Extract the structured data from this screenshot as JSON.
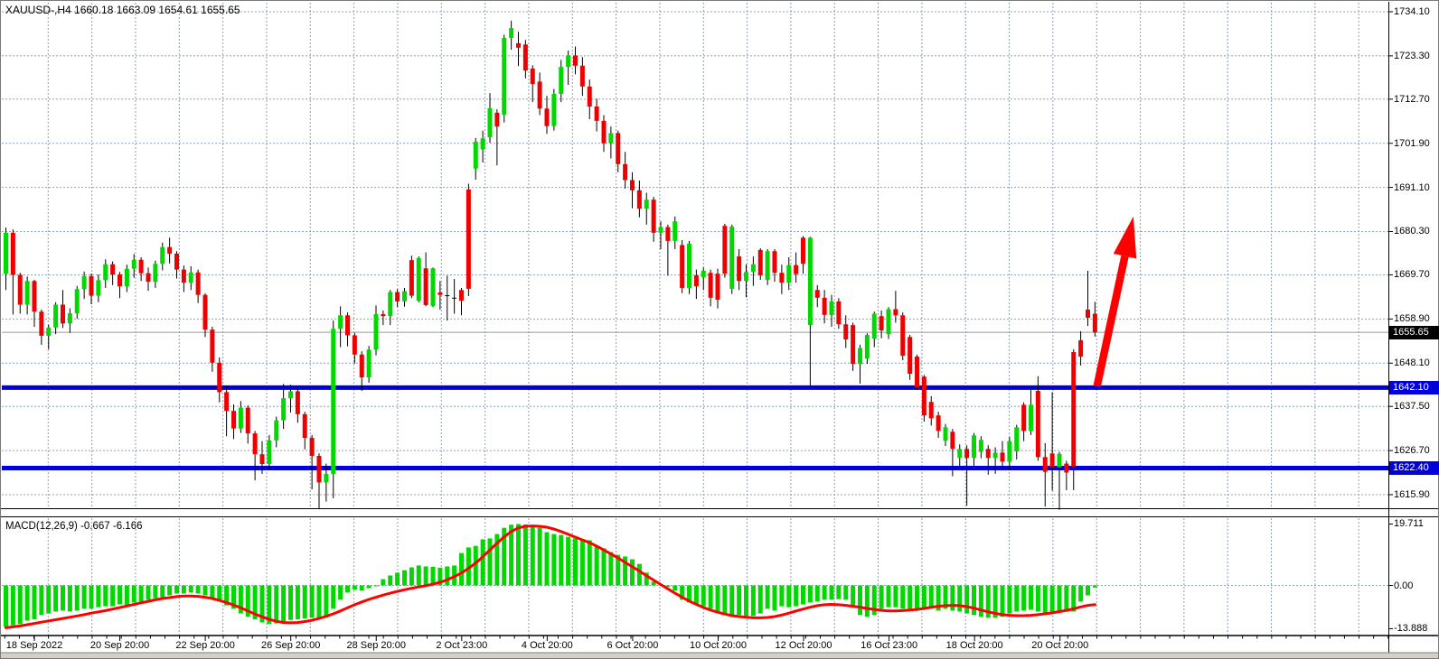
{
  "window": {
    "title": "XAUUSD-,H4  1660.18 1663.09 1654.61 1655.65"
  },
  "colors": {
    "bull": "#00d800",
    "bear": "#ee0000",
    "wick": "#000000",
    "grid": "#8e9fb5",
    "level_line": "#0000dd",
    "signal_line": "#ff0000",
    "arrow": "#ff0000",
    "current_line": "#999999",
    "tag_current_bg": "#000000",
    "tag_level_bg": "#0000dd",
    "axis_text": "#000000",
    "frame": "#7a7a7a",
    "bottom_strip": "#d4d0c8"
  },
  "price_axis": {
    "ticks": [
      "1734.10",
      "1723.30",
      "1712.70",
      "1701.90",
      "1691.10",
      "1680.30",
      "1669.70",
      "1658.90",
      "1648.10",
      "1637.50",
      "1626.70",
      "1615.90"
    ],
    "tags": [
      {
        "text": "1655.65",
        "bg": "#000000"
      },
      {
        "text": "1642.10",
        "bg": "#0000dd"
      },
      {
        "text": "1622.40",
        "bg": "#0000dd"
      }
    ]
  },
  "time_axis": {
    "labels": [
      "18 Sep 2022",
      "20 Sep 20:00",
      "22 Sep 20:00",
      "26 Sep 20:00",
      "28 Sep 20:00",
      "2 Oct 23:00",
      "4 Oct 20:00",
      "6 Oct 20:00",
      "10 Oct 20:00",
      "12 Oct 20:00",
      "16 Oct 23:00",
      "18 Oct 20:00",
      "20 Oct 20:00"
    ]
  },
  "macd_panel": {
    "label": "MACD(12,26,9) -0.667 -6.166",
    "axis": [
      "19.711",
      "0.00",
      "-13.888"
    ]
  },
  "chart_data": {
    "type": "candlestick",
    "symbol": "XAUUSD-",
    "timeframe": "H4",
    "title": "XAUUSD-,H4  1660.18 1663.09 1654.61 1655.65",
    "ylim": [
      1615.9,
      1734.1
    ],
    "y_ticks": [
      1734.1,
      1723.3,
      1712.7,
      1701.9,
      1691.1,
      1680.3,
      1669.7,
      1658.9,
      1648.1,
      1637.5,
      1626.7,
      1615.9
    ],
    "x_labels": [
      "18 Sep 2022",
      "20 Sep 20:00",
      "22 Sep 20:00",
      "26 Sep 20:00",
      "28 Sep 20:00",
      "2 Oct 23:00",
      "4 Oct 20:00",
      "6 Oct 20:00",
      "10 Oct 20:00",
      "12 Oct 20:00",
      "16 Oct 23:00",
      "18 Oct 20:00",
      "20 Oct 20:00"
    ],
    "current_price": 1655.65,
    "last_candle": {
      "open": 1660.18,
      "high": 1663.09,
      "low": 1654.61,
      "close": 1655.65
    },
    "horizontal_lines": [
      {
        "price": 1642.1,
        "color": "#0000dd"
      },
      {
        "price": 1622.4,
        "color": "#0000dd"
      }
    ],
    "annotation_arrow": {
      "from": {
        "bar": 153.3,
        "price": 1642.5
      },
      "to": {
        "bar": 158.4,
        "price": 1684.0
      },
      "color": "#ff0000"
    },
    "candles_ohlc": [
      [
        1670.0,
        1681.3,
        1666.0,
        1680.0
      ],
      [
        1680.0,
        1680.8,
        1660.0,
        1669.7
      ],
      [
        1669.7,
        1670.2,
        1660.2,
        1662.4
      ],
      [
        1662.4,
        1669.3,
        1660.0,
        1668.2
      ],
      [
        1668.2,
        1668.5,
        1657.0,
        1660.7
      ],
      [
        1660.7,
        1661.2,
        1652.6,
        1654.8
      ],
      [
        1654.8,
        1657.5,
        1651.5,
        1656.8
      ],
      [
        1656.8,
        1663.0,
        1655.2,
        1662.4
      ],
      [
        1662.4,
        1666.0,
        1656.7,
        1657.8
      ],
      [
        1657.8,
        1661.5,
        1655.5,
        1660.3
      ],
      [
        1660.3,
        1667.0,
        1659.0,
        1666.2
      ],
      [
        1666.2,
        1670.5,
        1663.8,
        1669.4
      ],
      [
        1669.4,
        1670.0,
        1662.5,
        1664.6
      ],
      [
        1664.6,
        1669.8,
        1663.0,
        1668.4
      ],
      [
        1668.4,
        1673.5,
        1666.5,
        1672.3
      ],
      [
        1672.3,
        1673.0,
        1667.2,
        1669.8
      ],
      [
        1669.8,
        1670.4,
        1664.0,
        1666.9
      ],
      [
        1666.9,
        1672.2,
        1665.5,
        1671.2
      ],
      [
        1671.2,
        1674.8,
        1669.0,
        1673.4
      ],
      [
        1673.4,
        1674.0,
        1668.2,
        1670.1
      ],
      [
        1670.1,
        1671.5,
        1665.8,
        1668.0
      ],
      [
        1668.0,
        1673.2,
        1666.5,
        1672.4
      ],
      [
        1672.4,
        1677.6,
        1670.8,
        1676.5
      ],
      [
        1676.5,
        1678.8,
        1672.5,
        1674.9
      ],
      [
        1674.9,
        1675.5,
        1668.8,
        1671.0
      ],
      [
        1671.0,
        1672.0,
        1665.5,
        1667.8
      ],
      [
        1667.8,
        1671.8,
        1666.0,
        1670.3
      ],
      [
        1670.3,
        1671.0,
        1662.8,
        1664.8
      ],
      [
        1664.8,
        1665.2,
        1654.5,
        1656.3
      ],
      [
        1656.3,
        1657.0,
        1646.0,
        1648.2
      ],
      [
        1648.2,
        1649.5,
        1638.5,
        1641.0
      ],
      [
        1641.0,
        1642.5,
        1630.2,
        1636.4
      ],
      [
        1636.4,
        1638.0,
        1629.5,
        1632.1
      ],
      [
        1632.1,
        1638.8,
        1631.0,
        1637.2
      ],
      [
        1637.2,
        1637.8,
        1628.4,
        1630.9
      ],
      [
        1630.9,
        1631.5,
        1619.4,
        1625.8
      ],
      [
        1625.8,
        1629.0,
        1621.0,
        1623.4
      ],
      [
        1623.4,
        1630.5,
        1622.0,
        1629.2
      ],
      [
        1629.2,
        1635.0,
        1627.5,
        1634.1
      ],
      [
        1634.1,
        1643.0,
        1632.0,
        1639.5
      ],
      [
        1639.5,
        1642.8,
        1636.0,
        1641.2
      ],
      [
        1641.2,
        1641.8,
        1633.5,
        1635.6
      ],
      [
        1635.6,
        1636.2,
        1627.0,
        1629.8
      ],
      [
        1629.8,
        1630.5,
        1617.2,
        1625.4
      ],
      [
        1625.4,
        1626.0,
        1612.4,
        1618.9
      ],
      [
        1618.9,
        1623.5,
        1614.2,
        1621.0
      ],
      [
        1621.0,
        1658.5,
        1615.0,
        1656.5
      ],
      [
        1656.5,
        1662.0,
        1652.0,
        1659.8
      ],
      [
        1659.8,
        1660.5,
        1652.2,
        1654.9
      ],
      [
        1654.9,
        1655.5,
        1648.0,
        1650.2
      ],
      [
        1650.2,
        1651.0,
        1641.3,
        1644.6
      ],
      [
        1644.6,
        1652.3,
        1643.3,
        1651.4
      ],
      [
        1651.4,
        1662.2,
        1650.0,
        1660.1
      ],
      [
        1660.1,
        1661.0,
        1657.4,
        1659.6
      ],
      [
        1659.6,
        1666.0,
        1657.4,
        1665.5
      ],
      [
        1665.5,
        1666.2,
        1661.8,
        1663.2
      ],
      [
        1663.2,
        1666.5,
        1661.9,
        1665.7
      ],
      [
        1673.3,
        1674.4,
        1664.0,
        1664.6
      ],
      [
        1663.4,
        1674.2,
        1663.0,
        1673.8
      ],
      [
        1671.3,
        1675.2,
        1662.0,
        1662.3
      ],
      [
        1662.1,
        1671.5,
        1661.8,
        1671.3
      ],
      [
        1665.4,
        1668.2,
        1661.2,
        1664.8
      ],
      [
        1664.6,
        1669.5,
        1658.5,
        1664.6
      ],
      [
        1664.2,
        1668.7,
        1660.2,
        1664.0
      ],
      [
        1666.0,
        1666.5,
        1659.8,
        1663.4
      ],
      [
        1690.6,
        1692.0,
        1664.5,
        1666.3
      ],
      [
        1695.7,
        1703.2,
        1693.0,
        1702.3
      ],
      [
        1700.4,
        1705.0,
        1697.2,
        1703.1
      ],
      [
        1703.4,
        1714.2,
        1702.0,
        1710.5
      ],
      [
        1709.4,
        1710.2,
        1696.5,
        1706.0
      ],
      [
        1708.9,
        1728.5,
        1707.0,
        1727.7
      ],
      [
        1727.7,
        1731.9,
        1724.8,
        1730.1
      ],
      [
        1726.4,
        1729.2,
        1720.8,
        1725.3
      ],
      [
        1726.1,
        1727.2,
        1717.8,
        1719.7
      ],
      [
        1720.2,
        1721.0,
        1712.0,
        1716.4
      ],
      [
        1717.0,
        1719.2,
        1708.8,
        1710.4
      ],
      [
        1710.4,
        1713.5,
        1704.2,
        1706.1
      ],
      [
        1706.1,
        1715.2,
        1705.0,
        1714.0
      ],
      [
        1714.0,
        1722.3,
        1712.0,
        1720.6
      ],
      [
        1720.6,
        1724.6,
        1716.2,
        1723.4
      ],
      [
        1723.4,
        1725.6,
        1718.8,
        1720.9
      ],
      [
        1720.9,
        1723.0,
        1713.5,
        1715.8
      ],
      [
        1715.8,
        1717.5,
        1707.8,
        1710.9
      ],
      [
        1710.9,
        1712.8,
        1704.8,
        1707.4
      ],
      [
        1707.4,
        1708.8,
        1699.8,
        1701.9
      ],
      [
        1701.9,
        1706.0,
        1698.2,
        1704.4
      ],
      [
        1704.4,
        1705.0,
        1694.8,
        1696.8
      ],
      [
        1696.8,
        1699.8,
        1690.8,
        1692.9
      ],
      [
        1692.9,
        1694.8,
        1686.0,
        1690.4
      ],
      [
        1690.4,
        1692.8,
        1683.8,
        1685.9
      ],
      [
        1685.9,
        1689.8,
        1682.0,
        1688.1
      ],
      [
        1688.1,
        1688.8,
        1677.8,
        1680.0
      ],
      [
        1680.0,
        1682.8,
        1676.0,
        1681.4
      ],
      [
        1681.4,
        1682.0,
        1669.5,
        1678.0
      ],
      [
        1678.0,
        1684.0,
        1676.0,
        1682.8
      ],
      [
        1677.0,
        1678.2,
        1665.2,
        1666.5
      ],
      [
        1666.5,
        1678.0,
        1665.0,
        1677.3
      ],
      [
        1669.6,
        1671.0,
        1663.8,
        1666.9
      ],
      [
        1669.1,
        1671.5,
        1666.0,
        1670.7
      ],
      [
        1670.2,
        1671.0,
        1662.0,
        1664.1
      ],
      [
        1670.0,
        1671.2,
        1661.5,
        1663.6
      ],
      [
        1681.7,
        1682.2,
        1669.0,
        1670.0
      ],
      [
        1666.3,
        1682.0,
        1665.0,
        1681.5
      ],
      [
        1674.2,
        1676.0,
        1666.0,
        1668.2
      ],
      [
        1668.2,
        1672.3,
        1664.2,
        1670.4
      ],
      [
        1670.4,
        1674.2,
        1667.0,
        1672.3
      ],
      [
        1675.8,
        1676.2,
        1668.5,
        1669.6
      ],
      [
        1668.5,
        1676.0,
        1667.2,
        1675.5
      ],
      [
        1675.5,
        1676.0,
        1668.0,
        1670.2
      ],
      [
        1670.2,
        1672.2,
        1665.0,
        1667.8
      ],
      [
        1667.8,
        1674.0,
        1666.0,
        1672.1
      ],
      [
        1672.1,
        1675.2,
        1667.8,
        1669.9
      ],
      [
        1678.8,
        1679.2,
        1670.0,
        1672.4
      ],
      [
        1657.4,
        1679.0,
        1642.4,
        1678.8
      ],
      [
        1666.0,
        1667.2,
        1661.8,
        1664.1
      ],
      [
        1664.1,
        1666.0,
        1657.8,
        1659.9
      ],
      [
        1659.9,
        1664.8,
        1657.0,
        1663.2
      ],
      [
        1663.2,
        1664.0,
        1656.5,
        1657.6
      ],
      [
        1657.6,
        1659.8,
        1651.8,
        1653.9
      ],
      [
        1657.4,
        1658.0,
        1646.2,
        1647.9
      ],
      [
        1647.9,
        1652.6,
        1643.1,
        1651.8
      ],
      [
        1649.2,
        1655.4,
        1647.9,
        1655.0
      ],
      [
        1654.1,
        1660.7,
        1652.0,
        1660.2
      ],
      [
        1659.6,
        1661.0,
        1654.2,
        1656.1
      ],
      [
        1655.2,
        1661.8,
        1654.0,
        1661.3
      ],
      [
        1661.3,
        1665.8,
        1658.0,
        1659.8
      ],
      [
        1659.8,
        1660.5,
        1648.8,
        1649.9
      ],
      [
        1654.5,
        1655.0,
        1644.0,
        1645.5
      ],
      [
        1649.7,
        1650.2,
        1641.5,
        1642.2
      ],
      [
        1644.8,
        1645.2,
        1633.8,
        1635.3
      ],
      [
        1638.6,
        1640.0,
        1632.8,
        1634.6
      ],
      [
        1635.3,
        1636.2,
        1629.8,
        1631.5
      ],
      [
        1629.1,
        1633.2,
        1627.8,
        1632.4
      ],
      [
        1631.3,
        1632.0,
        1620.4,
        1627.1
      ],
      [
        1624.9,
        1628.2,
        1622.8,
        1627.1
      ],
      [
        1627.1,
        1628.0,
        1613.2,
        1624.9
      ],
      [
        1624.9,
        1631.0,
        1623.0,
        1630.4
      ],
      [
        1626.4,
        1630.2,
        1624.8,
        1629.3
      ],
      [
        1627.1,
        1628.0,
        1620.8,
        1624.9
      ],
      [
        1624.9,
        1627.5,
        1621.0,
        1626.2
      ],
      [
        1626.2,
        1629.0,
        1622.5,
        1624.0
      ],
      [
        1624.0,
        1630.0,
        1622.0,
        1629.0
      ],
      [
        1626.5,
        1633.0,
        1624.5,
        1632.4
      ],
      [
        1637.9,
        1638.5,
        1629.0,
        1631.5
      ],
      [
        1631.5,
        1641.5,
        1630.5,
        1637.9
      ],
      [
        1641.3,
        1644.9,
        1624.2,
        1625.1
      ],
      [
        1625.1,
        1628.5,
        1613.0,
        1621.5
      ],
      [
        1626.0,
        1641.0,
        1616.9,
        1622.6
      ],
      [
        1622.6,
        1626.4,
        1612.2,
        1625.9
      ],
      [
        1623.5,
        1624.2,
        1617.0,
        1621.3
      ],
      [
        1650.8,
        1651.5,
        1617.0,
        1622.7
      ],
      [
        1653.7,
        1655.9,
        1647.5,
        1649.7
      ],
      [
        1661.2,
        1670.7,
        1657.2,
        1659.2
      ],
      [
        1660.18,
        1663.09,
        1654.61,
        1655.65
      ]
    ],
    "macd": {
      "label": "MACD(12,26,9)",
      "fast": 12,
      "slow": 26,
      "signal_period": 9,
      "value": -0.667,
      "signal_value": -6.166,
      "ylim": [
        -13.888,
        19.711
      ],
      "histogram": [
        -13.3,
        -12.8,
        -12.4,
        -11.3,
        -10.9,
        -9.5,
        -9.0,
        -8.4,
        -8.1,
        -8.4,
        -8.1,
        -7.5,
        -7.5,
        -7.0,
        -6.7,
        -6.7,
        -6.1,
        -6.4,
        -5.5,
        -5.2,
        -4.6,
        -4.1,
        -3.8,
        -3.2,
        -2.6,
        -2.6,
        -2.3,
        -2.6,
        -3.2,
        -4.1,
        -5.2,
        -6.4,
        -7.5,
        -9.0,
        -10.0,
        -10.9,
        -11.9,
        -12.4,
        -12.2,
        -11.6,
        -11.1,
        -10.9,
        -10.6,
        -10.4,
        -10.4,
        -10.4,
        -7.5,
        -4.6,
        -2.3,
        -1.4,
        -1.7,
        -0.9,
        -0.3,
        2.0,
        3.2,
        4.1,
        4.9,
        5.8,
        6.4,
        6.1,
        6.0,
        5.7,
        6.1,
        6.4,
        10.4,
        12.2,
        12.7,
        14.8,
        15.1,
        16.5,
        18.5,
        19.5,
        19.711,
        19.6,
        19.3,
        18.5,
        17.1,
        16.5,
        16.2,
        15.6,
        15.1,
        14.8,
        14.5,
        12.7,
        11.9,
        10.7,
        9.8,
        9.3,
        8.4,
        6.9,
        4.1,
        1.2,
        0.3,
        -0.5,
        -1.7,
        -4.6,
        -5.5,
        -6.1,
        -6.7,
        -7.5,
        -8.4,
        -9.0,
        -9.5,
        -9.5,
        -9.8,
        -9.8,
        -9.0,
        -7.5,
        -8.1,
        -6.7,
        -7.0,
        -6.7,
        -6.1,
        -5.5,
        -5.2,
        -4.6,
        -4.6,
        -4.4,
        -4.6,
        -6.7,
        -9.5,
        -10.1,
        -9.5,
        -7.5,
        -7.0,
        -7.0,
        -7.5,
        -7.5,
        -8.1,
        -7.5,
        -7.5,
        -8.1,
        -7.5,
        -8.1,
        -8.4,
        -9.0,
        -9.5,
        -10.1,
        -10.4,
        -10.4,
        -10.1,
        -9.0,
        -8.4,
        -8.1,
        -7.8,
        -8.4,
        -8.7,
        -9.0,
        -8.7,
        -8.4,
        -8.4,
        -5.2,
        -3.2,
        -0.667
      ],
      "signal": [
        -13.6,
        -13.3,
        -13.0,
        -12.6,
        -12.2,
        -11.8,
        -11.4,
        -11.0,
        -10.6,
        -10.2,
        -9.8,
        -9.4,
        -8.9,
        -8.5,
        -8.1,
        -7.6,
        -7.1,
        -6.6,
        -6.1,
        -5.6,
        -5.1,
        -4.6,
        -4.2,
        -3.9,
        -3.6,
        -3.4,
        -3.4,
        -3.5,
        -3.8,
        -4.2,
        -4.8,
        -5.5,
        -6.3,
        -7.2,
        -8.2,
        -9.2,
        -10.1,
        -10.9,
        -11.5,
        -11.9,
        -12.0,
        -11.9,
        -11.6,
        -11.2,
        -10.6,
        -9.9,
        -9.1,
        -8.2,
        -7.2,
        -6.2,
        -5.3,
        -4.5,
        -3.8,
        -3.1,
        -2.5,
        -1.9,
        -1.4,
        -0.9,
        -0.5,
        -0.1,
        0.4,
        1.0,
        1.8,
        2.8,
        4.0,
        5.5,
        7.2,
        9.2,
        11.4,
        13.6,
        15.6,
        17.3,
        18.5,
        19.0,
        19.1,
        19.0,
        18.7,
        18.1,
        17.3,
        16.4,
        15.5,
        14.6,
        13.7,
        12.6,
        11.4,
        10.1,
        8.8,
        7.4,
        6.0,
        4.6,
        3.1,
        1.7,
        0.3,
        -1.1,
        -2.5,
        -3.8,
        -5.0,
        -6.1,
        -7.1,
        -7.9,
        -8.6,
        -9.2,
        -9.7,
        -10.0,
        -10.2,
        -10.4,
        -10.4,
        -10.3,
        -10.0,
        -9.5,
        -8.9,
        -8.2,
        -7.6,
        -7.0,
        -6.5,
        -6.2,
        -6.1,
        -6.2,
        -6.4,
        -6.7,
        -7.0,
        -7.4,
        -7.7,
        -8.0,
        -8.2,
        -8.2,
        -8.1,
        -7.9,
        -7.7,
        -7.4,
        -7.0,
        -6.7,
        -6.5,
        -6.4,
        -6.5,
        -6.8,
        -7.3,
        -7.9,
        -8.5,
        -9.0,
        -9.4,
        -9.6,
        -9.7,
        -9.7,
        -9.6,
        -9.4,
        -9.1,
        -8.8,
        -8.4,
        -8.0,
        -7.5,
        -6.9,
        -6.4,
        -6.166
      ]
    }
  }
}
